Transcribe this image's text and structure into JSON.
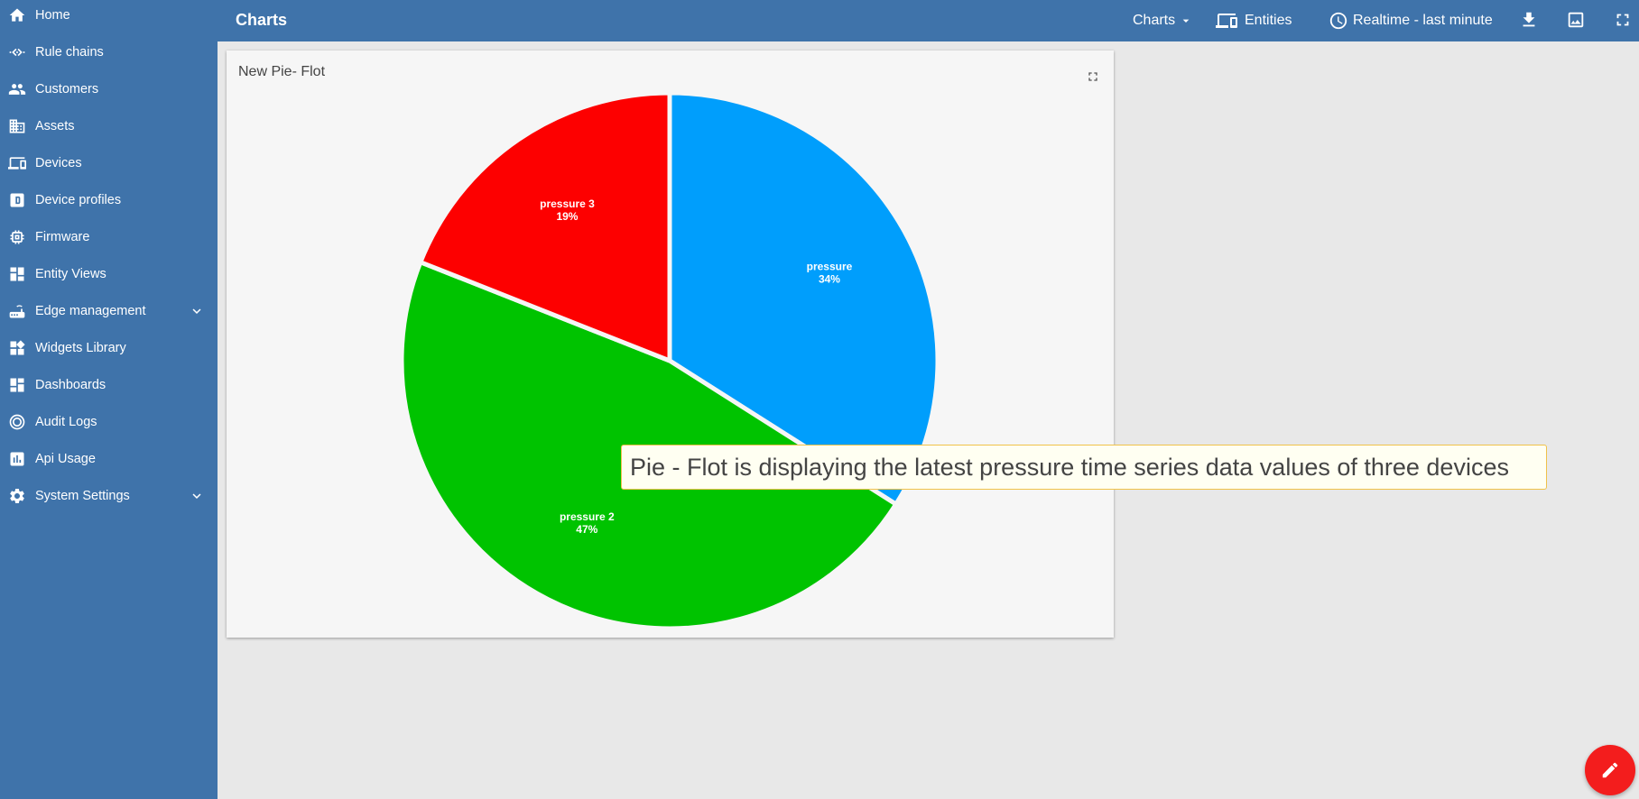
{
  "sidebar": {
    "items": [
      {
        "label": "Home",
        "icon": "home-icon"
      },
      {
        "label": "Rule chains",
        "icon": "rule-chains-icon"
      },
      {
        "label": "Customers",
        "icon": "customers-icon"
      },
      {
        "label": "Assets",
        "icon": "assets-icon"
      },
      {
        "label": "Devices",
        "icon": "devices-icon"
      },
      {
        "label": "Device profiles",
        "icon": "device-profiles-icon"
      },
      {
        "label": "Firmware",
        "icon": "firmware-icon"
      },
      {
        "label": "Entity Views",
        "icon": "entity-views-icon"
      },
      {
        "label": "Edge management",
        "icon": "edge-management-icon",
        "expandable": true
      },
      {
        "label": "Widgets Library",
        "icon": "widgets-library-icon"
      },
      {
        "label": "Dashboards",
        "icon": "dashboards-icon"
      },
      {
        "label": "Audit Logs",
        "icon": "audit-logs-icon"
      },
      {
        "label": "Api Usage",
        "icon": "api-usage-icon"
      },
      {
        "label": "System Settings",
        "icon": "system-settings-icon",
        "expandable": true
      }
    ]
  },
  "toolbar": {
    "title": "Charts",
    "states_label": "Charts",
    "entities_label": "Entities",
    "timewindow_label": "Realtime - last minute"
  },
  "widget": {
    "title": "New Pie- Flot"
  },
  "chart_data": {
    "type": "pie",
    "series": [
      {
        "name": "pressure",
        "percent": 34,
        "color": "#009efc"
      },
      {
        "name": "pressure 2",
        "percent": 47,
        "color": "#00c300"
      },
      {
        "name": "pressure 3",
        "percent": 19,
        "color": "#fd0000"
      }
    ]
  },
  "tooltip": {
    "text": "Pie - Flot is displaying the latest pressure time series data values of three devices"
  },
  "colors": {
    "primary": "#3f73aa",
    "fab": "#f31d1d",
    "background": "#e8e8e8"
  }
}
